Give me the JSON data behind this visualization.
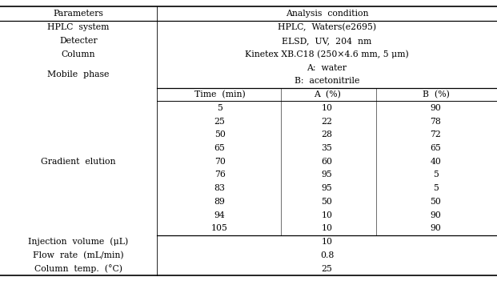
{
  "title_col1": "Parameters",
  "title_col2": "Analysis  condition",
  "hplc_system": "HPLC,  Waters(e2695)",
  "detecter": "ELSD,  UV,  204  nm",
  "column": "Kinetex XB.C18 (250×4.6 mm, 5 μm)",
  "mobile_a": "A:  water",
  "mobile_b": "B:  acetonitrile",
  "gradient_header": [
    "Time  (min)",
    "A  (%)",
    "B  (%)"
  ],
  "gradient_data": [
    [
      "5",
      "10",
      "90"
    ],
    [
      "25",
      "22",
      "78"
    ],
    [
      "50",
      "28",
      "72"
    ],
    [
      "65",
      "35",
      "65"
    ],
    [
      "70",
      "60",
      "40"
    ],
    [
      "76",
      "95",
      "5"
    ],
    [
      "83",
      "95",
      "5"
    ],
    [
      "89",
      "50",
      "50"
    ],
    [
      "94",
      "10",
      "90"
    ],
    [
      "105",
      "10",
      "90"
    ]
  ],
  "injection_volume": "10",
  "flow_rate": "0.8",
  "column_temp": "25",
  "param_labels": [
    "HPLC  system",
    "Detecter",
    "Column",
    "Mobile  phase",
    "Gradient  elution",
    "Injection  volume  (μL)",
    "Flow  rate  (mL/min)",
    "Column  temp.  (°C)"
  ],
  "bg_color": "#ffffff",
  "text_color": "#000000",
  "font_size": 7.8,
  "col_split": 0.315
}
